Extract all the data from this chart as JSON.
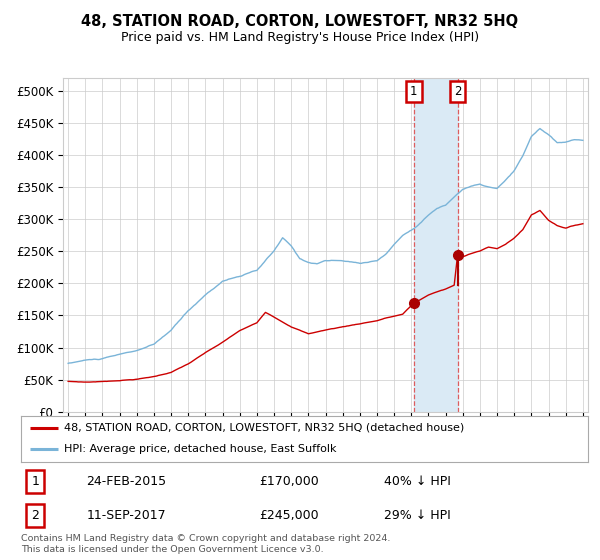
{
  "title": "48, STATION ROAD, CORTON, LOWESTOFT, NR32 5HQ",
  "subtitle": "Price paid vs. HM Land Registry's House Price Index (HPI)",
  "legend_line1": "48, STATION ROAD, CORTON, LOWESTOFT, NR32 5HQ (detached house)",
  "legend_line2": "HPI: Average price, detached house, East Suffolk",
  "transaction1_date": "24-FEB-2015",
  "transaction1_price": 170000,
  "transaction1_price_str": "£170,000",
  "transaction1_pct": "40% ↓ HPI",
  "transaction2_date": "11-SEP-2017",
  "transaction2_price": 245000,
  "transaction2_price_str": "£245,000",
  "transaction2_pct": "29% ↓ HPI",
  "transaction1_year": 2015.14,
  "transaction2_year": 2017.7,
  "hpi_color": "#7ab4d8",
  "property_color": "#cc0000",
  "point_color": "#aa0000",
  "background_color": "#ffffff",
  "grid_color": "#cccccc",
  "highlight_color": "#daeaf5",
  "ylim": [
    0,
    520000
  ],
  "yticks": [
    0,
    50000,
    100000,
    150000,
    200000,
    250000,
    300000,
    350000,
    400000,
    450000,
    500000
  ],
  "ytick_labels": [
    "£0",
    "£50K",
    "£100K",
    "£150K",
    "£200K",
    "£250K",
    "£300K",
    "£350K",
    "£400K",
    "£450K",
    "£500K"
  ],
  "footer": "Contains HM Land Registry data © Crown copyright and database right 2024.\nThis data is licensed under the Open Government Licence v3.0.",
  "year_start": 1995,
  "year_end": 2025
}
